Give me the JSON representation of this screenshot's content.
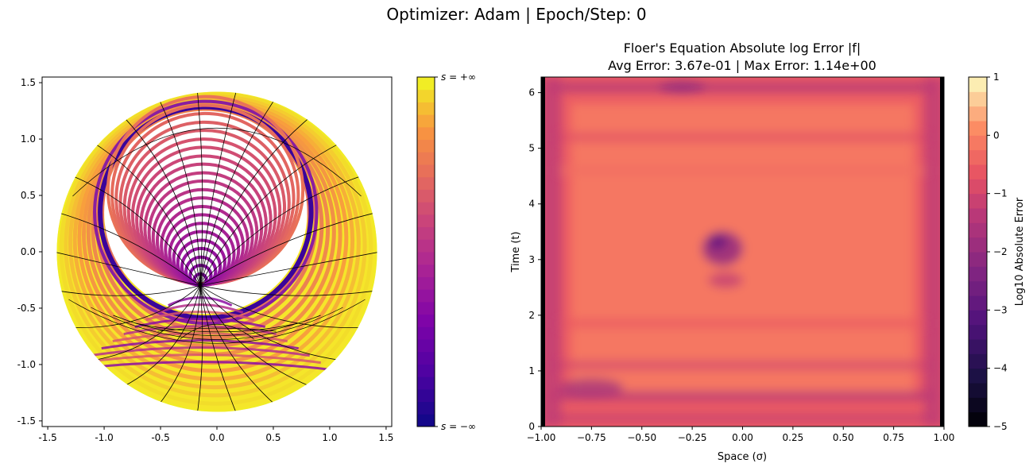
{
  "figure": {
    "suptitle": "Optimizer: Adam | Epoch/Step: 0"
  },
  "chart_data": [
    {
      "type": "scatter",
      "panel": "left",
      "title": "",
      "xlabel": "",
      "ylabel": "",
      "xlim": [
        -1.55,
        1.55
      ],
      "ylim": [
        -1.55,
        1.55
      ],
      "xticks": [
        "-1.5",
        "-1.0",
        "-0.5",
        "0.0",
        "0.5",
        "1.0",
        "1.5"
      ],
      "xtick_values": [
        -1.5,
        -1.0,
        -0.5,
        0.0,
        0.5,
        1.0,
        1.5
      ],
      "yticks": [
        "1.5",
        "1.0",
        "0.5",
        "0.0",
        "-0.5",
        "-1.0",
        "-1.5"
      ],
      "ytick_values": [
        1.5,
        1.0,
        0.5,
        0.0,
        -0.5,
        -1.0,
        -1.5
      ],
      "shape": {
        "outer_disk_center": [
          0.0,
          0.0
        ],
        "outer_disk_radius": 1.42,
        "inner_circle_center": [
          -0.1,
          0.35
        ],
        "inner_circle_radius": 0.9,
        "singular_point": [
          -0.15,
          -0.3
        ]
      },
      "colorbar": {
        "label_top": "s = +∞",
        "label_bottom": "s = −∞",
        "colormap": "plasma",
        "levels": 28
      },
      "colors": {
        "outer_edge": "#f5e62a",
        "ring_mid": "#e6705a",
        "dark_band": "#3a049a",
        "purple": "#8a1ea0"
      }
    },
    {
      "type": "heatmap",
      "panel": "right",
      "title": "Floer's Equation Absolute log Error |f|",
      "subtitle": "Avg Error: 3.67e-01 | Max Error: 1.14e+00",
      "xlabel": "Space (σ)",
      "ylabel": "Time (t)",
      "xlim": [
        -1.0,
        1.0
      ],
      "ylim": [
        0,
        6.28
      ],
      "xticks": [
        "−1.00",
        "−0.75",
        "−0.50",
        "−0.25",
        "0.00",
        "0.25",
        "0.50",
        "0.75",
        "1.00"
      ],
      "xtick_values": [
        -1.0,
        -0.75,
        -0.5,
        -0.25,
        0.0,
        0.25,
        0.5,
        0.75,
        1.0
      ],
      "yticks": [
        "0",
        "1",
        "2",
        "3",
        "4",
        "5",
        "6"
      ],
      "ytick_values": [
        0,
        1,
        2,
        3,
        4,
        5,
        6
      ],
      "avg_error": 0.367,
      "max_error": 1.14,
      "hotspot": {
        "sigma": -0.1,
        "t": 3.2
      },
      "colorbar": {
        "label": "Log10 Absolute Error",
        "ticks": [
          "1",
          "0",
          "−1",
          "−2",
          "−3",
          "−4",
          "−5"
        ],
        "tick_values": [
          1,
          0,
          -1,
          -2,
          -3,
          -4,
          -5
        ],
        "range": [
          -5,
          1
        ],
        "colormap": "magma"
      }
    }
  ]
}
